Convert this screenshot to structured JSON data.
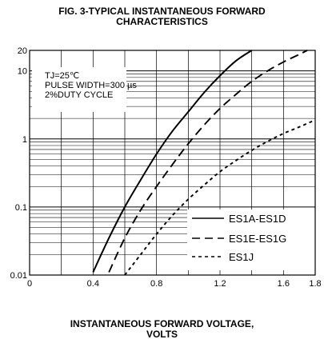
{
  "chart_data": {
    "type": "line",
    "title": "FIG. 3-TYPICAL INSTANTANEOUS FORWARD CHARACTERISTICS",
    "title_lines": [
      "FIG. 3-TYPICAL INSTANTANEOUS FORWARD",
      "CHARACTERISTICS"
    ],
    "xlabel": "INSTANTANEOUS FORWARD VOLTAGE, VOLTS",
    "xlabel_lines": [
      "INSTANTANEOUS FORWARD VOLTAGE,",
      "VOLTS"
    ],
    "ylabel": "",
    "xlim": [
      0,
      1.8
    ],
    "ylim": [
      0.01,
      20
    ],
    "yscale": "log",
    "grid": true,
    "x_ticks": [
      "0",
      "0.4",
      "0.8",
      "1.2",
      "1.6",
      "1.8"
    ],
    "x_tick_values": [
      0,
      0.4,
      0.8,
      1.2,
      1.6,
      1.8
    ],
    "y_ticks": [
      "0.01",
      "0.1",
      "1",
      "10",
      "20"
    ],
    "y_tick_values": [
      0.01,
      0.1,
      1,
      10,
      20
    ],
    "annotations": [
      "TJ=25℃",
      "PULSE WIDTH=300 µs",
      "2%DUTY CYCLE"
    ],
    "legend_position": "bottom-right",
    "series": [
      {
        "name": "ES1A-ES1D",
        "style": "solid",
        "x": [
          0.4,
          0.5,
          0.6,
          0.7,
          0.8,
          0.9,
          1.0,
          1.1,
          1.2,
          1.3,
          1.4
        ],
        "y": [
          0.011,
          0.035,
          0.1,
          0.25,
          0.6,
          1.3,
          2.5,
          4.8,
          8.5,
          14.0,
          20.0
        ]
      },
      {
        "name": "ES1E-ES1G",
        "style": "dashed",
        "x": [
          0.5,
          0.6,
          0.7,
          0.8,
          0.9,
          1.0,
          1.1,
          1.2,
          1.3,
          1.4,
          1.5,
          1.6,
          1.7,
          1.75
        ],
        "y": [
          0.011,
          0.035,
          0.09,
          0.2,
          0.42,
          0.85,
          1.6,
          2.8,
          4.5,
          7.0,
          10.0,
          13.5,
          17.5,
          20.0
        ]
      },
      {
        "name": "ES1J",
        "style": "dotted",
        "x": [
          0.6,
          0.7,
          0.8,
          0.9,
          1.0,
          1.1,
          1.2,
          1.3,
          1.4,
          1.5,
          1.6,
          1.7,
          1.8
        ],
        "y": [
          0.01,
          0.02,
          0.04,
          0.075,
          0.13,
          0.21,
          0.33,
          0.48,
          0.68,
          0.92,
          1.2,
          1.5,
          1.9
        ]
      }
    ]
  }
}
